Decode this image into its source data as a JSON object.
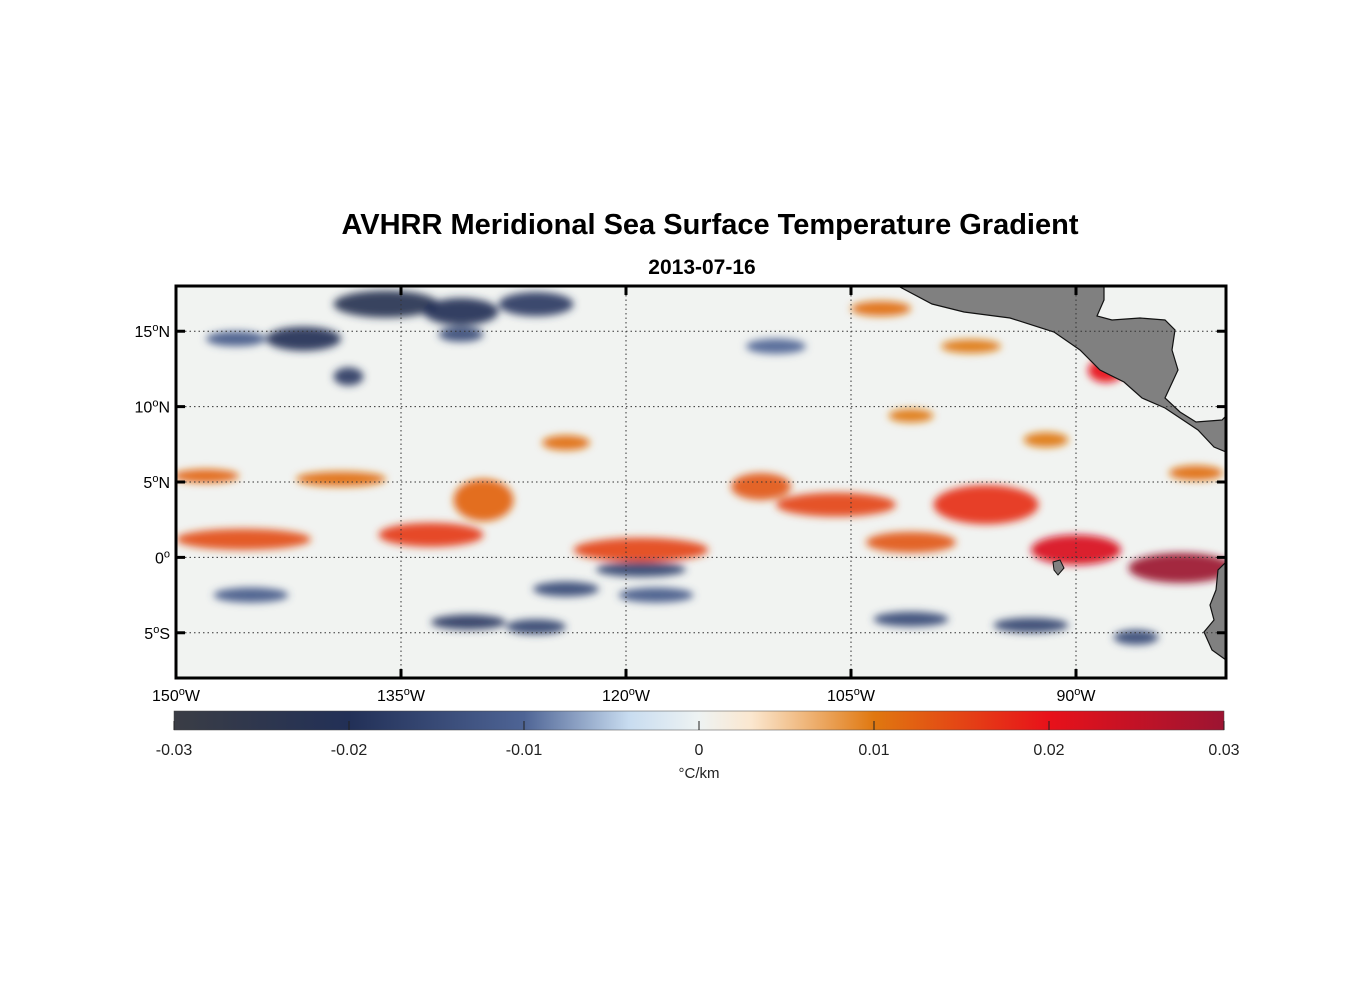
{
  "title": "AVHRR Meridional Sea Surface Temperature Gradient",
  "subtitle": "2013-07-16",
  "map": {
    "lon_range": [
      -150,
      -80
    ],
    "lat_range": [
      -8,
      18
    ],
    "lon_ticks": [
      {
        "lon": -150,
        "num": "150",
        "hemi": "W"
      },
      {
        "lon": -135,
        "num": "135",
        "hemi": "W"
      },
      {
        "lon": -120,
        "num": "120",
        "hemi": "W"
      },
      {
        "lon": -105,
        "num": "105",
        "hemi": "W"
      },
      {
        "lon": -90,
        "num": "90",
        "hemi": "W"
      }
    ],
    "lat_ticks": [
      {
        "lat": 15,
        "num": "15",
        "hemi": "N"
      },
      {
        "lat": 10,
        "num": "10",
        "hemi": "N"
      },
      {
        "lat": 5,
        "num": "5",
        "hemi": "N"
      },
      {
        "lat": 0,
        "num": "0",
        "hemi": ""
      },
      {
        "lat": -5,
        "num": "5",
        "hemi": "S"
      }
    ],
    "grid": true,
    "land_color": "#808080",
    "features": [
      {
        "lon": -145.5,
        "lat": 1.2,
        "rx": 4.5,
        "ry": 0.7,
        "v": 0.014
      },
      {
        "lon": -148,
        "lat": 5.4,
        "rx": 2.2,
        "ry": 0.45,
        "v": 0.012
      },
      {
        "lon": -139,
        "lat": 5.2,
        "rx": 3.0,
        "ry": 0.5,
        "v": 0.011
      },
      {
        "lon": -133,
        "lat": 1.5,
        "rx": 3.5,
        "ry": 0.8,
        "v": 0.016
      },
      {
        "lon": -129.5,
        "lat": 3.8,
        "rx": 2.0,
        "ry": 1.4,
        "v": 0.012
      },
      {
        "lon": -124,
        "lat": 7.6,
        "rx": 1.6,
        "ry": 0.5,
        "v": 0.011
      },
      {
        "lon": -119,
        "lat": 0.5,
        "rx": 4.5,
        "ry": 0.8,
        "v": 0.015
      },
      {
        "lon": -111,
        "lat": 4.7,
        "rx": 2.0,
        "ry": 0.9,
        "v": 0.013
      },
      {
        "lon": -106,
        "lat": 3.5,
        "rx": 4.0,
        "ry": 0.8,
        "v": 0.015
      },
      {
        "lon": -101,
        "lat": 1.0,
        "rx": 3.0,
        "ry": 0.7,
        "v": 0.013
      },
      {
        "lon": -96,
        "lat": 3.5,
        "rx": 3.5,
        "ry": 1.3,
        "v": 0.017
      },
      {
        "lon": -90,
        "lat": 0.5,
        "rx": 3.0,
        "ry": 1.0,
        "v": 0.022
      },
      {
        "lon": -83,
        "lat": -0.7,
        "rx": 3.5,
        "ry": 1.0,
        "v": 0.03
      },
      {
        "lon": -88,
        "lat": 12.4,
        "rx": 1.2,
        "ry": 0.8,
        "v": 0.02
      },
      {
        "lon": -103,
        "lat": 16.5,
        "rx": 2.0,
        "ry": 0.5,
        "v": 0.011
      },
      {
        "lon": -97,
        "lat": 14,
        "rx": 2.0,
        "ry": 0.45,
        "v": 0.01
      },
      {
        "lon": -101,
        "lat": 9.4,
        "rx": 1.5,
        "ry": 0.45,
        "v": 0.01
      },
      {
        "lon": -82,
        "lat": 5.6,
        "rx": 1.8,
        "ry": 0.5,
        "v": 0.011
      },
      {
        "lon": -92,
        "lat": 7.8,
        "rx": 1.5,
        "ry": 0.5,
        "v": 0.01
      },
      {
        "lon": -141.5,
        "lat": 14.5,
        "rx": 2.5,
        "ry": 0.8,
        "v": -0.02
      },
      {
        "lon": -136,
        "lat": 16.8,
        "rx": 3.5,
        "ry": 0.9,
        "v": -0.022
      },
      {
        "lon": -131,
        "lat": 16.3,
        "rx": 2.5,
        "ry": 0.9,
        "v": -0.02
      },
      {
        "lon": -126,
        "lat": 16.8,
        "rx": 2.5,
        "ry": 0.8,
        "v": -0.018
      },
      {
        "lon": -138.5,
        "lat": 12,
        "rx": 1.0,
        "ry": 0.6,
        "v": -0.018
      },
      {
        "lon": -131,
        "lat": 14.8,
        "rx": 1.5,
        "ry": 0.5,
        "v": -0.015
      },
      {
        "lon": -130.5,
        "lat": -4.3,
        "rx": 2.5,
        "ry": 0.5,
        "v": -0.018
      },
      {
        "lon": -126,
        "lat": -4.6,
        "rx": 2.0,
        "ry": 0.5,
        "v": -0.016
      },
      {
        "lon": -124,
        "lat": -2.1,
        "rx": 2.2,
        "ry": 0.5,
        "v": -0.015
      },
      {
        "lon": -119,
        "lat": -0.8,
        "rx": 3.0,
        "ry": 0.5,
        "v": -0.016
      },
      {
        "lon": -118,
        "lat": -2.5,
        "rx": 2.5,
        "ry": 0.5,
        "v": -0.012
      },
      {
        "lon": -145,
        "lat": -2.5,
        "rx": 2.5,
        "ry": 0.5,
        "v": -0.012
      },
      {
        "lon": -101,
        "lat": -4.1,
        "rx": 2.5,
        "ry": 0.5,
        "v": -0.015
      },
      {
        "lon": -93,
        "lat": -4.5,
        "rx": 2.5,
        "ry": 0.5,
        "v": -0.016
      },
      {
        "lon": -86,
        "lat": -5.3,
        "rx": 1.5,
        "ry": 0.5,
        "v": -0.015
      },
      {
        "lon": -146,
        "lat": 14.5,
        "rx": 2.0,
        "ry": 0.5,
        "v": -0.012
      },
      {
        "lon": -110,
        "lat": 14.0,
        "rx": 2.0,
        "ry": 0.5,
        "v": -0.01
      }
    ]
  },
  "colorbar": {
    "min": -0.03,
    "max": 0.03,
    "tick_labels": [
      "-0.03",
      "-0.02",
      "-0.01",
      "0",
      "0.01",
      "0.02",
      "0.03"
    ],
    "tick_values": [
      -0.03,
      -0.02,
      -0.01,
      0,
      0.01,
      0.02,
      0.03
    ],
    "unit": "°C/km",
    "stops": [
      {
        "v": -0.03,
        "color": "#3a3d45"
      },
      {
        "v": -0.02,
        "color": "#223057"
      },
      {
        "v": -0.01,
        "color": "#4e6495"
      },
      {
        "v": -0.004,
        "color": "#c8dcf0"
      },
      {
        "v": 0,
        "color": "#eef3f3"
      },
      {
        "v": 0.003,
        "color": "#fbe7cf"
      },
      {
        "v": 0.01,
        "color": "#e07810"
      },
      {
        "v": 0.02,
        "color": "#e8111a"
      },
      {
        "v": 0.03,
        "color": "#9c1432"
      }
    ]
  }
}
